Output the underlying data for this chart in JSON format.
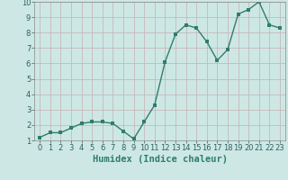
{
  "xlabel": "Humidex (Indice chaleur)",
  "x": [
    0,
    1,
    2,
    3,
    4,
    5,
    6,
    7,
    8,
    9,
    10,
    11,
    12,
    13,
    14,
    15,
    16,
    17,
    18,
    19,
    20,
    21,
    22,
    23
  ],
  "y": [
    1.2,
    1.5,
    1.5,
    1.8,
    2.1,
    2.2,
    2.2,
    2.1,
    1.6,
    1.1,
    2.2,
    3.3,
    6.1,
    7.9,
    8.5,
    8.3,
    7.4,
    6.2,
    6.9,
    9.2,
    9.5,
    10.0,
    8.5,
    8.3
  ],
  "line_color": "#2e7d6e",
  "marker_color": "#2e7d6e",
  "bg_color": "#cde8e4",
  "grid_color": "#c0d0ce",
  "ylim": [
    1,
    10
  ],
  "xlim": [
    -0.5,
    23.5
  ],
  "yticks": [
    1,
    2,
    3,
    4,
    5,
    6,
    7,
    8,
    9,
    10
  ],
  "xticks": [
    0,
    1,
    2,
    3,
    4,
    5,
    6,
    7,
    8,
    9,
    10,
    11,
    12,
    13,
    14,
    15,
    16,
    17,
    18,
    19,
    20,
    21,
    22,
    23
  ],
  "tick_fontsize": 6,
  "xlabel_fontsize": 7.5,
  "marker_size": 2.5,
  "line_width": 1.0
}
